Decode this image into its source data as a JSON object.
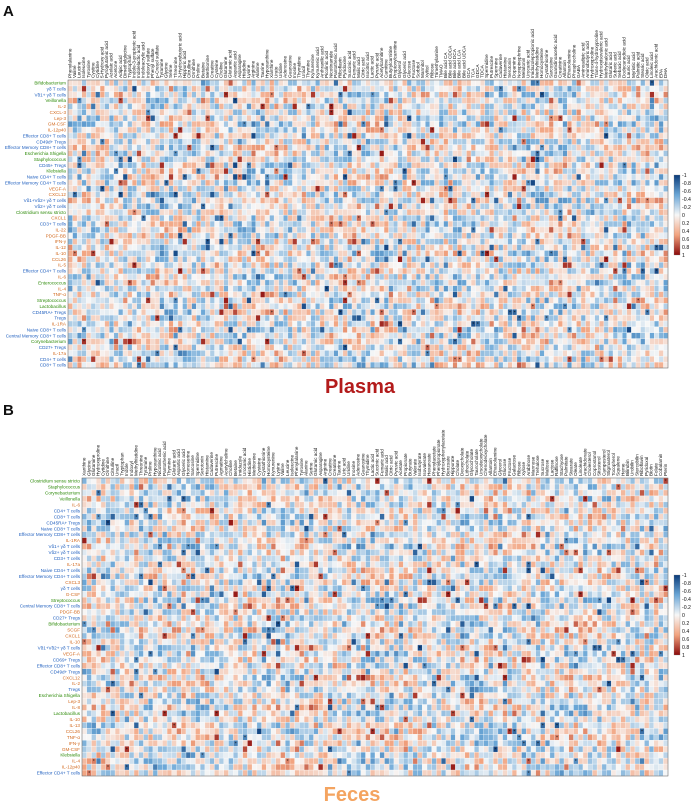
{
  "colors": {
    "microbe": "#2e8b0a",
    "cytokine": "#d2691e",
    "immune_cell": "#1f5fbf",
    "plasma_title": "#b31b1b",
    "feces_title": "#f4a460",
    "scale_neg": "#0b3c7a",
    "scale_mid": "#f7f7f7",
    "scale_pos": "#8b0a0a"
  },
  "chart_data": [
    {
      "type": "heatmap",
      "panel": "A",
      "title": "Plasma",
      "legend_placement": "right",
      "colorbar": {
        "ticks": [
          "-1",
          "-0.8",
          "-0.6",
          "-0.4",
          "-0.2",
          "0",
          "0.2",
          "0.4",
          "0.6",
          "0.8",
          "1"
        ],
        "range": [
          -1,
          1
        ]
      },
      "rows": [
        {
          "label": "Bifidobacterium",
          "kind": "microbe"
        },
        {
          "label": "γδ T cells",
          "kind": "immune_cell"
        },
        {
          "label": "Vδ1+ γδ T cells",
          "kind": "immune_cell"
        },
        {
          "label": "Veillonella",
          "kind": "microbe"
        },
        {
          "label": "IL-2",
          "kind": "cytokine"
        },
        {
          "label": "CXCL-3",
          "kind": "cytokine"
        },
        {
          "label": "Lep-3",
          "kind": "cytokine"
        },
        {
          "label": "GM-CSF",
          "kind": "cytokine"
        },
        {
          "label": "IL-12p40",
          "kind": "cytokine"
        },
        {
          "label": "Effector CD8+ T cells",
          "kind": "immune_cell"
        },
        {
          "label": "CD49d+ Tregs",
          "kind": "immune_cell"
        },
        {
          "label": "Effector Memory CD8+ T cells",
          "kind": "immune_cell"
        },
        {
          "label": "Escherichia Shigella",
          "kind": "microbe"
        },
        {
          "label": "Staphylococcus",
          "kind": "microbe"
        },
        {
          "label": "CD45+ Tregs",
          "kind": "immune_cell"
        },
        {
          "label": "Klebsiella",
          "kind": "microbe"
        },
        {
          "label": "Naive CD4+ T cells",
          "kind": "immune_cell"
        },
        {
          "label": "Effector Memory CD4+ T cells",
          "kind": "immune_cell"
        },
        {
          "label": "VEGF-A",
          "kind": "cytokine"
        },
        {
          "label": "CXCL12",
          "kind": "cytokine"
        },
        {
          "label": "Vδ1+Vδ2+ γδ T cells",
          "kind": "immune_cell"
        },
        {
          "label": "Vδ2+ γδ T cells",
          "kind": "immune_cell"
        },
        {
          "label": "Clostridium sensu stricto",
          "kind": "microbe"
        },
        {
          "label": "CXCL1",
          "kind": "cytokine"
        },
        {
          "label": "CD3+ T cells",
          "kind": "immune_cell"
        },
        {
          "label": "IL-22",
          "kind": "cytokine"
        },
        {
          "label": "PDGF-BB",
          "kind": "cytokine"
        },
        {
          "label": "IFN-γ",
          "kind": "cytokine"
        },
        {
          "label": "IL-12",
          "kind": "cytokine"
        },
        {
          "label": "IL-10",
          "kind": "cytokine"
        },
        {
          "label": "CCL26",
          "kind": "cytokine"
        },
        {
          "label": "IL-5",
          "kind": "cytokine"
        },
        {
          "label": "Effector CD4+ T cells",
          "kind": "immune_cell"
        },
        {
          "label": "IL-6",
          "kind": "cytokine"
        },
        {
          "label": "Enterococcus",
          "kind": "microbe"
        },
        {
          "label": "IL-4",
          "kind": "cytokine"
        },
        {
          "label": "TNF-α",
          "kind": "cytokine"
        },
        {
          "label": "Streptococcus",
          "kind": "microbe"
        },
        {
          "label": "Lactobacillus",
          "kind": "microbe"
        },
        {
          "label": "CD45RA+ Tregs",
          "kind": "immune_cell"
        },
        {
          "label": "Tregs",
          "kind": "immune_cell"
        },
        {
          "label": "IL-1RA",
          "kind": "cytokine"
        },
        {
          "label": "Naive CD8+ T cells",
          "kind": "immune_cell"
        },
        {
          "label": "Central Memory CD8+ T cells",
          "kind": "immune_cell"
        },
        {
          "label": "Corynebacterium",
          "kind": "microbe"
        },
        {
          "label": "CD27+ Tregs",
          "kind": "immune_cell"
        },
        {
          "label": "IL-17a",
          "kind": "cytokine"
        },
        {
          "label": "CD4+ T cells",
          "kind": "immune_cell"
        },
        {
          "label": "CD8+ T cells",
          "kind": "immune_cell"
        }
      ],
      "columns": [
        "Phenylalanine",
        "Valine",
        "Leucine",
        "Isoleucine",
        "Tyrosine",
        "Cystine",
        "Cytidine",
        "5-Hydroxy acid",
        "Pyroglutamic acid",
        "Azelaic acid",
        "Acetone",
        "Adipic acid",
        "Dimethylglycine",
        "Tryptophan",
        "Indole-3-propionic acid",
        "Indolelactic acid",
        "Indoleacrylic acid",
        "Indoxyl sulfate",
        "Phenyl sulfate",
        "p-Cresol sulfate",
        "Tyramine",
        "Glycine",
        "Serine",
        "Threonine",
        "3-Hydroxybutyric acid",
        "Hippuric acid",
        "Citrulline",
        "Ornithine",
        "Proline",
        "Betaine",
        "Methionine",
        "Creatine",
        "Cysteine",
        "Choline",
        "Glutamine",
        "Glutamic acid",
        "Aspartic acid",
        "Asparagine",
        "Histidine",
        "Lysine",
        "Arginine",
        "Alanine",
        "Taurine",
        "Hypoxanthine",
        "Xanthine",
        "Urate",
        "Uridine",
        "Adenosine",
        "Guanosine",
        "Inosine",
        "Thymidine",
        "Uracil",
        "Thymine",
        "Kynurenine",
        "Kynurenic acid",
        "Anthranilic acid",
        "Picolinic acid",
        "Nicotinamide",
        "Pantothenic acid",
        "Riboflavin",
        "Pyridoxine",
        "Succinic acid",
        "Fumaric acid",
        "Malic acid",
        "Citric acid",
        "Isocitric acid",
        "Lactic acid",
        "Pyruvic acid",
        "Acetylcarnitine",
        "Carnitine",
        "Butyrylcarnitine",
        "Propionylcarnitine",
        "Glycerol",
        "Glyceric acid",
        "Glucose",
        "Fructose",
        "Sorbitol",
        "Mannitol",
        "Xylitol",
        "Ribose",
        "Trimethylamine",
        "TMAO",
        "Bile acid CA",
        "Bile acid CDCA",
        "Bile acid DCA",
        "Bile acid LCA",
        "Bile acid UDCA",
        "GCA",
        "TCA",
        "GDCA",
        "TDCA",
        "Spermidine",
        "Putrescine",
        "Spermine",
        "Cadaverine",
        "Histamine",
        "Serotonin",
        "Dopamine",
        "Norepinephrine",
        "Melatonin",
        "Urocanic acid",
        "Imidazolepropionic acid",
        "Methylhistidine",
        "Homocysteine",
        "Cystathionine",
        "Sarcosine",
        "Guanidinoacetic acid",
        "Creatinine",
        "Allantoin",
        "Ethanolamine",
        "Phosphocholine",
        "GABA",
        "Aminoadipic acid",
        "Aminobutyric acid",
        "Hydroxyproline",
        "Trans-4-hydroxyproline",
        "Hydroxyisovaleric acid",
        "Methylmalonic acid",
        "Glutaric acid",
        "Suberic acid",
        "Sebacic acid",
        "Dodecanedioic acid",
        "Lauric acid",
        "Myristic acid",
        "Palmitic acid",
        "Stearic acid",
        "Oleic acid",
        "Linoleic acid",
        "Arachidonic acid",
        "EPA",
        "DHA"
      ]
    },
    {
      "type": "heatmap",
      "panel": "B",
      "title": "Feces",
      "legend_placement": "right",
      "colorbar": {
        "ticks": [
          "-1",
          "-0.8",
          "-0.6",
          "-0.4",
          "-0.2",
          "0",
          "0.2",
          "0.4",
          "0.6",
          "0.8",
          "1"
        ],
        "range": [
          -1,
          1
        ]
      },
      "rows": [
        {
          "label": "Clostridium sensu stricto",
          "kind": "microbe"
        },
        {
          "label": "Staphylococcus",
          "kind": "microbe"
        },
        {
          "label": "Corynebacterium",
          "kind": "microbe"
        },
        {
          "label": "Veillonella",
          "kind": "microbe"
        },
        {
          "label": "IL-6",
          "kind": "cytokine"
        },
        {
          "label": "CD4+ T cells",
          "kind": "immune_cell"
        },
        {
          "label": "CD8+ T cells",
          "kind": "immune_cell"
        },
        {
          "label": "CD45RA+ Tregs",
          "kind": "immune_cell"
        },
        {
          "label": "Naive CD8+ T cells",
          "kind": "immune_cell"
        },
        {
          "label": "Effector Memory CD8+ T cells",
          "kind": "immune_cell"
        },
        {
          "label": "IL-1RA",
          "kind": "cytokine"
        },
        {
          "label": "Vδ1+ γδ T cells",
          "kind": "immune_cell"
        },
        {
          "label": "Vδ2+ γδ T cells",
          "kind": "immune_cell"
        },
        {
          "label": "CD3+ T cells",
          "kind": "immune_cell"
        },
        {
          "label": "IL-17a",
          "kind": "cytokine"
        },
        {
          "label": "Naive CD4+ T cells",
          "kind": "immune_cell"
        },
        {
          "label": "Effector Memory CD4+ T cells",
          "kind": "immune_cell"
        },
        {
          "label": "CXCL3",
          "kind": "cytokine"
        },
        {
          "label": "γδ T cells",
          "kind": "immune_cell"
        },
        {
          "label": "G-CSF",
          "kind": "cytokine"
        },
        {
          "label": "Streptococcus",
          "kind": "microbe"
        },
        {
          "label": "Central Memory CD8+ T cells",
          "kind": "immune_cell"
        },
        {
          "label": "PDGF-BB",
          "kind": "cytokine"
        },
        {
          "label": "CD27+ Tregs",
          "kind": "immune_cell"
        },
        {
          "label": "Bifidobacterium",
          "kind": "microbe"
        },
        {
          "label": "SCGF",
          "kind": "cytokine"
        },
        {
          "label": "CXCL1",
          "kind": "cytokine"
        },
        {
          "label": "IL-10",
          "kind": "cytokine"
        },
        {
          "label": "Vδ1+Vδ2+ γδ T cells",
          "kind": "immune_cell"
        },
        {
          "label": "VEGF-A",
          "kind": "cytokine"
        },
        {
          "label": "CD69+ Tregs",
          "kind": "immune_cell"
        },
        {
          "label": "Effector CD8+ T cells",
          "kind": "immune_cell"
        },
        {
          "label": "CD49d+ Tregs",
          "kind": "immune_cell"
        },
        {
          "label": "CXCL12",
          "kind": "cytokine"
        },
        {
          "label": "IL-2",
          "kind": "cytokine"
        },
        {
          "label": "Tregs",
          "kind": "immune_cell"
        },
        {
          "label": "Escherichia Shigella",
          "kind": "microbe"
        },
        {
          "label": "Lep-3",
          "kind": "cytokine"
        },
        {
          "label": "IL-8",
          "kind": "cytokine"
        },
        {
          "label": "Lactobacillus",
          "kind": "microbe"
        },
        {
          "label": "IL-10",
          "kind": "cytokine"
        },
        {
          "label": "IL-13",
          "kind": "cytokine"
        },
        {
          "label": "CCL26",
          "kind": "cytokine"
        },
        {
          "label": "TNF-α",
          "kind": "cytokine"
        },
        {
          "label": "IFN-γ",
          "kind": "cytokine"
        },
        {
          "label": "GM-CSF",
          "kind": "cytokine"
        },
        {
          "label": "Klebsiella",
          "kind": "microbe"
        },
        {
          "label": "IL-4",
          "kind": "cytokine"
        },
        {
          "label": "IL-12p40",
          "kind": "cytokine"
        },
        {
          "label": "Effector CD4+ T cells",
          "kind": "immune_cell"
        }
      ],
      "columns": [
        "Xanthine",
        "Glycine",
        "Glutamine",
        "Hydroxyproline",
        "Cytidine",
        "Ornithine",
        "Citrulline",
        "Uracil",
        "Tryptophan",
        "Indole",
        "Indoxyl",
        "Methylhistidine",
        "Threonine",
        "Tyramine",
        "Proline",
        "Hypoxanthine",
        "Nicotinic acid",
        "Pantothenic acid",
        "Thymine",
        "Glutaric acid",
        "Aspartic acid",
        "Glyceric acid",
        "Homoserine",
        "Sarcosine",
        "Spermidine",
        "Serotonin",
        "Histamine",
        "Cadaverine",
        "Putrescine",
        "Agmatine",
        "Acetylcholine",
        "Choline",
        "Betaine",
        "Imidazole",
        "Urocanic acid",
        "Histidine",
        "Methionine",
        "Cysteine",
        "Cystathionine",
        "Homocysteine",
        "Kynurenine",
        "Lysine",
        "Valine",
        "Leucine",
        "Isoleucine",
        "Phenylalanine",
        "Tyrosine",
        "Alanine",
        "Serine",
        "Glutamic acid",
        "Asparagine",
        "Arginine",
        "Creatine",
        "Creatinine",
        "Taurine",
        "Uric acid",
        "Uridine",
        "Inosine",
        "Adenosine",
        "Guanosine",
        "Thymidine",
        "Lactic acid",
        "Succinic acid",
        "Fumaric acid",
        "Malic acid",
        "Citric acid",
        "Pyruvic acid",
        "Acetate",
        "Propionate",
        "Butyrate",
        "Valerate",
        "Isobutyrate",
        "Isovalerate",
        "Hexanoate",
        "Phenylacetate",
        "Phenylpropionate",
        "Hydroxyphenylacetate",
        "Benzoate",
        "Hippurate",
        "Cholate",
        "Deoxycholate",
        "Lithocholate",
        "Glycocholate",
        "Taurocholate",
        "Ursodeoxycholate",
        "Chenodeoxycholate",
        "Allantoin",
        "Ethanolamine",
        "Glycerol",
        "Glucose",
        "Fructose",
        "Galactose",
        "Ribose",
        "Xylose",
        "Arabinose",
        "Mannose",
        "Trehalose",
        "Sucrose",
        "Maltose",
        "Lactose",
        "Raffinose",
        "Stachyose",
        "Palmitate",
        "Stearate",
        "Oleate",
        "Linoleate",
        "Arachidonate",
        "Cholesterol",
        "Coprostanol",
        "Sitosterol",
        "Campesterol",
        "Stigmasterol",
        "Tocopherol",
        "Squalene",
        "Heme",
        "Bilirubin",
        "Urobilin",
        "Stercobilin",
        "Riboflavin",
        "Pyridoxal",
        "Biotin",
        "Folate",
        "Cobalamin",
        "Pterin"
      ]
    }
  ]
}
